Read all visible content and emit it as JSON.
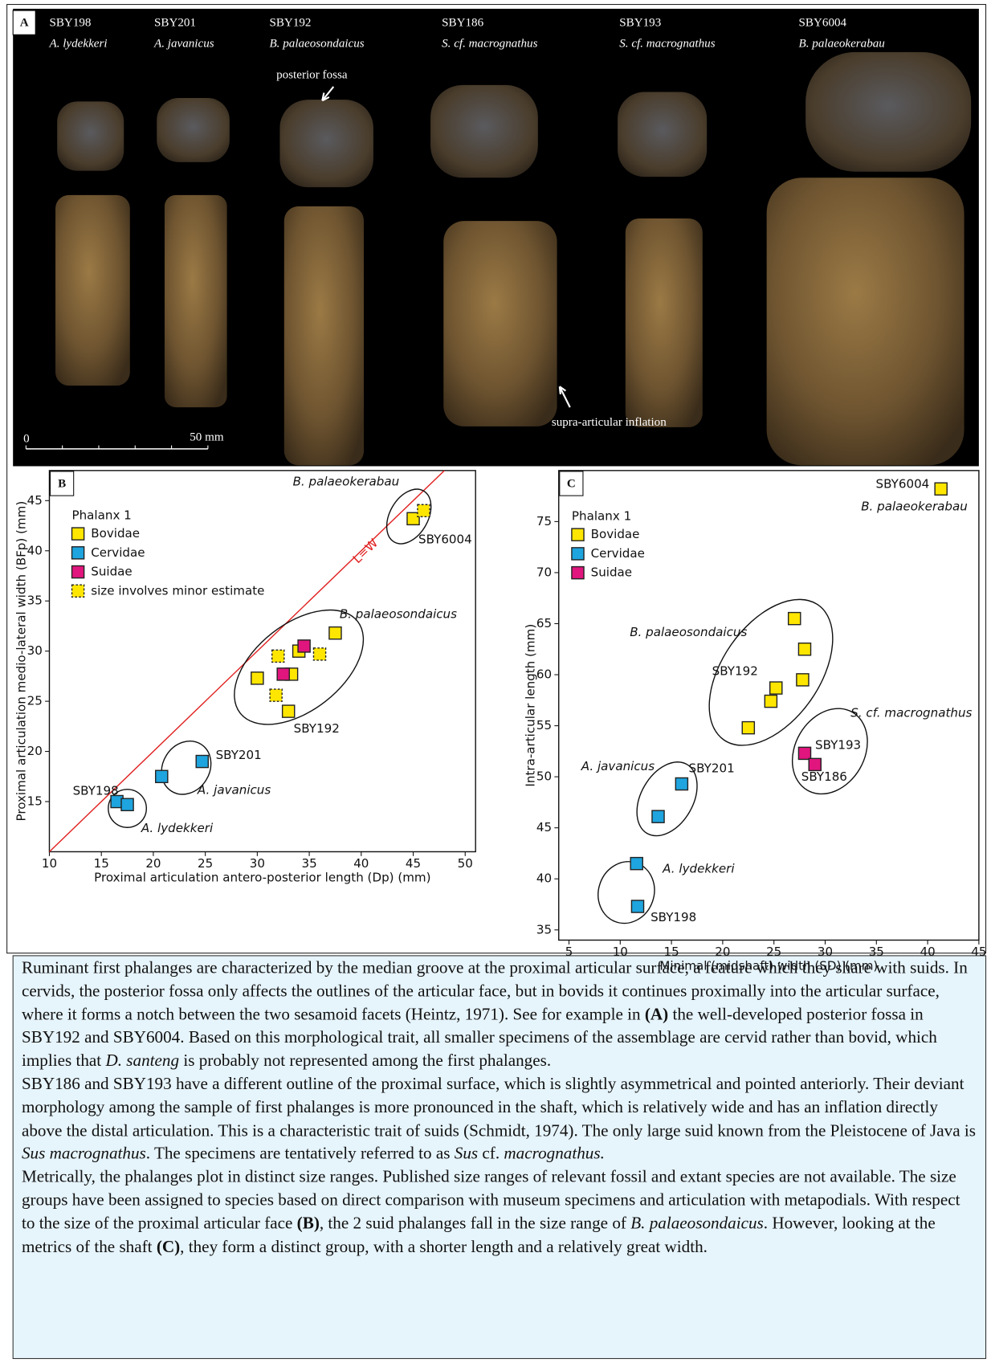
{
  "panel_a": {
    "label": "A",
    "specimens": [
      {
        "id": "SBY198",
        "taxon": "A. lydekkeri"
      },
      {
        "id": "SBY201",
        "taxon": "A. javanicus"
      },
      {
        "id": "SBY192",
        "taxon": "B. palaeosondaicus"
      },
      {
        "id": "SBY186",
        "taxon": "S. cf. macrognathus"
      },
      {
        "id": "SBY193",
        "taxon": "S. cf. macrognathus"
      },
      {
        "id": "SBY6004",
        "taxon": "B. palaeokerabau"
      }
    ],
    "annotations": [
      "posterior fossa",
      "supra-articular inflation"
    ],
    "scale_labels": [
      "0",
      "50 mm"
    ]
  },
  "chart_data": [
    {
      "type": "scatter",
      "panel_label": "B",
      "legend_title": "Phalanx 1",
      "xlabel": "Proximal articulation antero-posterior length (Dp) (mm)",
      "ylabel": "Proximal articulation medio-lateral width (BFp) (mm)",
      "xlim": [
        10,
        51
      ],
      "ylim": [
        10,
        48
      ],
      "xticks": [
        10,
        15,
        20,
        25,
        30,
        35,
        40,
        45,
        50
      ],
      "yticks": [
        15,
        20,
        25,
        30,
        35,
        40,
        45
      ],
      "legend": "upper left",
      "reference_line": "L=W",
      "reference_line_color": "#e02020",
      "series": [
        {
          "name": "Bovidae",
          "color": "#ffe600",
          "x": [
            30,
            33.3,
            34,
            37.5,
            33,
            45
          ],
          "y": [
            27.3,
            27.7,
            30,
            31.8,
            24,
            43.2
          ]
        },
        {
          "name": "Cervidae",
          "color": "#1ea4de",
          "x": [
            16.5,
            17.5,
            20.8,
            24.7
          ],
          "y": [
            15,
            14.7,
            17.5,
            19
          ]
        },
        {
          "name": "Suidae",
          "color": "#e0157d",
          "x": [
            32.5,
            34.5
          ],
          "y": [
            27.7,
            30.5
          ]
        },
        {
          "name": "size involves minor estimate",
          "color": "#ffe600",
          "dashed": true,
          "x": [
            32,
            31.8,
            36,
            46
          ],
          "y": [
            29.5,
            25.6,
            29.7,
            44
          ]
        }
      ],
      "labels": [
        "SBY198",
        "SBY201",
        "SBY192",
        "SBY6004"
      ],
      "taxon_labels": [
        "B. palaeokerabau",
        "B. palaeosondaicus",
        "A. javanicus",
        "A. lydekkeri"
      ]
    },
    {
      "type": "scatter",
      "panel_label": "C",
      "legend_title": "Phalanx 1",
      "xlabel": "Minimal (midshaft) width (SD) (mm)",
      "ylabel": "Intra-articular length (mm)",
      "xlim": [
        4,
        45
      ],
      "ylim": [
        34,
        80
      ],
      "xticks": [
        5,
        10,
        15,
        20,
        25,
        30,
        35,
        40,
        45
      ],
      "yticks": [
        35,
        40,
        45,
        50,
        55,
        60,
        65,
        70,
        75
      ],
      "legend": "upper left",
      "series": [
        {
          "name": "Bovidae",
          "color": "#ffe600",
          "x": [
            27,
            28,
            27.8,
            25.2,
            24.7,
            22.5,
            41.3
          ],
          "y": [
            65.5,
            62.5,
            59.5,
            58.7,
            57.4,
            54.8,
            78.2
          ]
        },
        {
          "name": "Cervidae",
          "color": "#1ea4de",
          "x": [
            16,
            13.7,
            11.6,
            11.7
          ],
          "y": [
            49.3,
            46.1,
            41.5,
            37.3
          ]
        },
        {
          "name": "Suidae",
          "color": "#e0157d",
          "x": [
            28,
            29
          ],
          "y": [
            52.3,
            51.2
          ]
        }
      ],
      "labels": [
        "SBY6004",
        "SBY192",
        "SBY201",
        "SBY193",
        "SBY186",
        "SBY198"
      ],
      "taxon_labels": [
        "B. palaeokerabau",
        "B. palaeosondaicus",
        "S. cf. macrognathus",
        "A. javanicus",
        "A. lydekkeri"
      ]
    }
  ],
  "caption": {
    "paragraphs": [
      [
        {
          "text": "Ruminant first phalanges are characterized by the median groove at the proximal articular surface, a feature which they share with suids. In cervids, the posterior fossa only affects the outlines of the articular face, but in bovids it continues proximally into the articular surface, where it forms a notch between the two sesamoid facets (Heintz, 1971). See for example in "
        },
        {
          "text": "(A)",
          "style": "bold"
        },
        {
          "text": " the well-developed posterior fossa in SBY192 and SBY6004. Based on this morphological trait, all smaller specimens of the assemblage are cervid rather than bovid, which implies that "
        },
        {
          "text": "D. santeng",
          "style": "italic"
        },
        {
          "text": " is probably not represented among the first phalanges."
        }
      ],
      [
        {
          "text": "SBY186 and SBY193 have a different outline of the proximal surface, which is slightly asymmetrical and pointed anteriorly. Their deviant morphology among the sample of first phalanges is more pronounced in the shaft, which is relatively wide and has an inflation directly above the distal articulation. This is a characteristic trait of suids (Schmidt, 1974). The only large suid known from the Pleistocene of Java is "
        },
        {
          "text": "Sus macrognathus",
          "style": "italic"
        },
        {
          "text": ". The specimens are tentatively referred to as "
        },
        {
          "text": "Sus",
          "style": "italic"
        },
        {
          "text": " cf. "
        },
        {
          "text": "macrognathus.",
          "style": "italic"
        }
      ],
      [
        {
          "text": "Metrically, the phalanges plot in distinct size ranges. Published size ranges of relevant fossil and extant species are not available. The size groups have been assigned to species based on direct comparison with museum specimens and articulation with metapodials. With respect to the size of the proximal articular face "
        },
        {
          "text": "(B)",
          "style": "bold"
        },
        {
          "text": ", the 2 suid phalanges fall in the size range of "
        },
        {
          "text": "B. palaeosondaicus",
          "style": "italic"
        },
        {
          "text": ". However, looking at the metrics of the shaft "
        },
        {
          "text": "(C)",
          "style": "bold"
        },
        {
          "text": ", they form a distinct group, with a shorter length and a relatively great width."
        }
      ]
    ]
  }
}
